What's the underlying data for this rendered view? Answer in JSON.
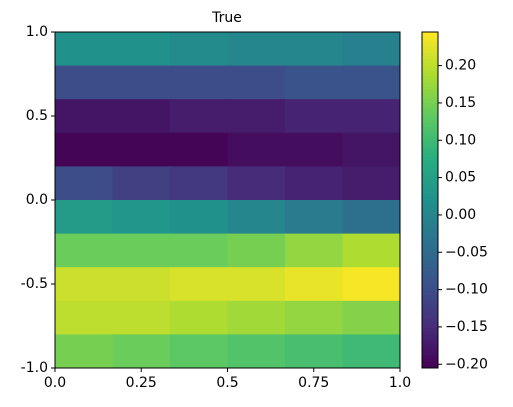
{
  "chart_data": {
    "type": "heatmap",
    "title": "True",
    "colormap": "viridis",
    "x": [
      0.0833,
      0.25,
      0.4167,
      0.5833,
      0.75,
      0.9167
    ],
    "y": [
      0.9,
      0.7,
      0.5,
      0.3,
      0.1,
      -0.1,
      -0.3,
      -0.5,
      -0.7,
      -0.9
    ],
    "values": [
      [
        0.02,
        0.02,
        0.01,
        0.0,
        0.0,
        -0.01
      ],
      [
        -0.1,
        -0.1,
        -0.1,
        -0.1,
        -0.09,
        -0.09
      ],
      [
        -0.18,
        -0.18,
        -0.17,
        -0.17,
        -0.16,
        -0.16
      ],
      [
        -0.2,
        -0.2,
        -0.2,
        -0.19,
        -0.19,
        -0.18
      ],
      [
        -0.1,
        -0.12,
        -0.13,
        -0.15,
        -0.16,
        -0.17
      ],
      [
        0.04,
        0.03,
        0.02,
        0.0,
        -0.02,
        -0.04
      ],
      [
        0.14,
        0.14,
        0.14,
        0.15,
        0.17,
        0.19
      ],
      [
        0.21,
        0.21,
        0.22,
        0.22,
        0.23,
        0.24
      ],
      [
        0.2,
        0.2,
        0.19,
        0.18,
        0.17,
        0.16
      ],
      [
        0.15,
        0.14,
        0.13,
        0.12,
        0.11,
        0.1
      ]
    ],
    "xlim": [
      0,
      1
    ],
    "ylim": [
      -1,
      1
    ],
    "xticks": [
      {
        "value": 0,
        "label": "0.0"
      },
      0.25,
      0.5,
      0.75,
      {
        "value": 1,
        "label": "1.0"
      }
    ],
    "yticks": [
      {
        "value": -1,
        "label": "-1.0"
      },
      {
        "value": -0.5,
        "label": "-0.5"
      },
      {
        "value": 0,
        "label": "0.0"
      },
      {
        "value": 0.5,
        "label": "0.5"
      },
      {
        "value": 1,
        "label": "1.0"
      }
    ],
    "clim": [
      -0.205,
      0.245
    ],
    "cticks": [
      {
        "value": -0.2,
        "label": "−0.20"
      },
      {
        "value": -0.15,
        "label": "−0.15"
      },
      {
        "value": -0.1,
        "label": "−0.10"
      },
      {
        "value": -0.05,
        "label": "−0.05"
      },
      {
        "value": 0,
        "label": "0.00"
      },
      {
        "value": 0.05,
        "label": "0.05"
      },
      {
        "value": 0.1,
        "label": "0.10"
      },
      {
        "value": 0.15,
        "label": "0.15"
      },
      {
        "value": 0.2,
        "label": "0.20"
      }
    ]
  }
}
